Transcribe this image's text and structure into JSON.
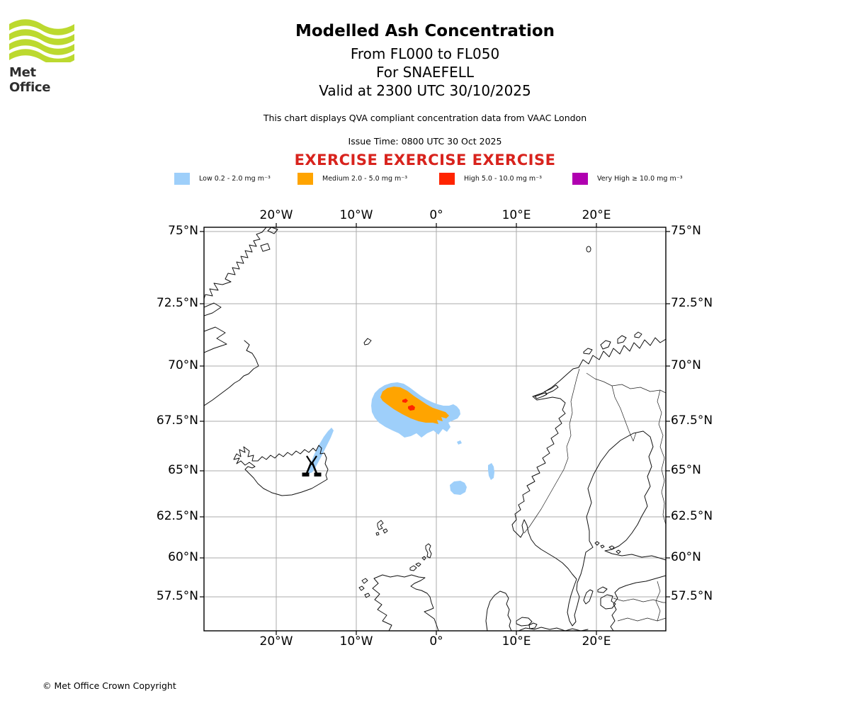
{
  "logo": {
    "brand": "Met Office"
  },
  "header": {
    "title": "Modelled Ash Concentration",
    "flight_levels": "From FL000 to FL050",
    "volcano": "For SNAEFELL",
    "valid": "Valid at 2300 UTC 30/10/2025",
    "qva_note": "This chart displays QVA compliant concentration data from VAAC London",
    "issue_time": "Issue Time: 0800 UTC 30 Oct 2025",
    "exercise_banner": "EXERCISE EXERCISE EXERCISE"
  },
  "legend": {
    "items": [
      {
        "label": "Low 0.2 - 2.0 mg m⁻³",
        "color": "#9ECFFA"
      },
      {
        "label": "Medium 2.0 - 5.0 mg m⁻³",
        "color": "#FFA400"
      },
      {
        "label": "High 5.0 - 10.0 mg m⁻³",
        "color": "#FF2400"
      },
      {
        "label": "Very High  ≥  10.0 mg m⁻³",
        "color": "#B000B0"
      }
    ]
  },
  "map": {
    "x_ticks": [
      "20°W",
      "10°W",
      "0°",
      "10°E",
      "20°E"
    ],
    "y_ticks": [
      "75°N",
      "72.5°N",
      "70°N",
      "67.5°N",
      "65°N",
      "62.5°N",
      "60°N",
      "57.5°N"
    ],
    "colors": {
      "low": "#9ECFFA",
      "medium": "#FFA400",
      "high": "#FF2400"
    }
  },
  "footer": {
    "copyright": "© Met Office Crown Copyright"
  },
  "colors": {
    "exercise_red": "#D8231D",
    "logo_green": "#BCD92F"
  }
}
